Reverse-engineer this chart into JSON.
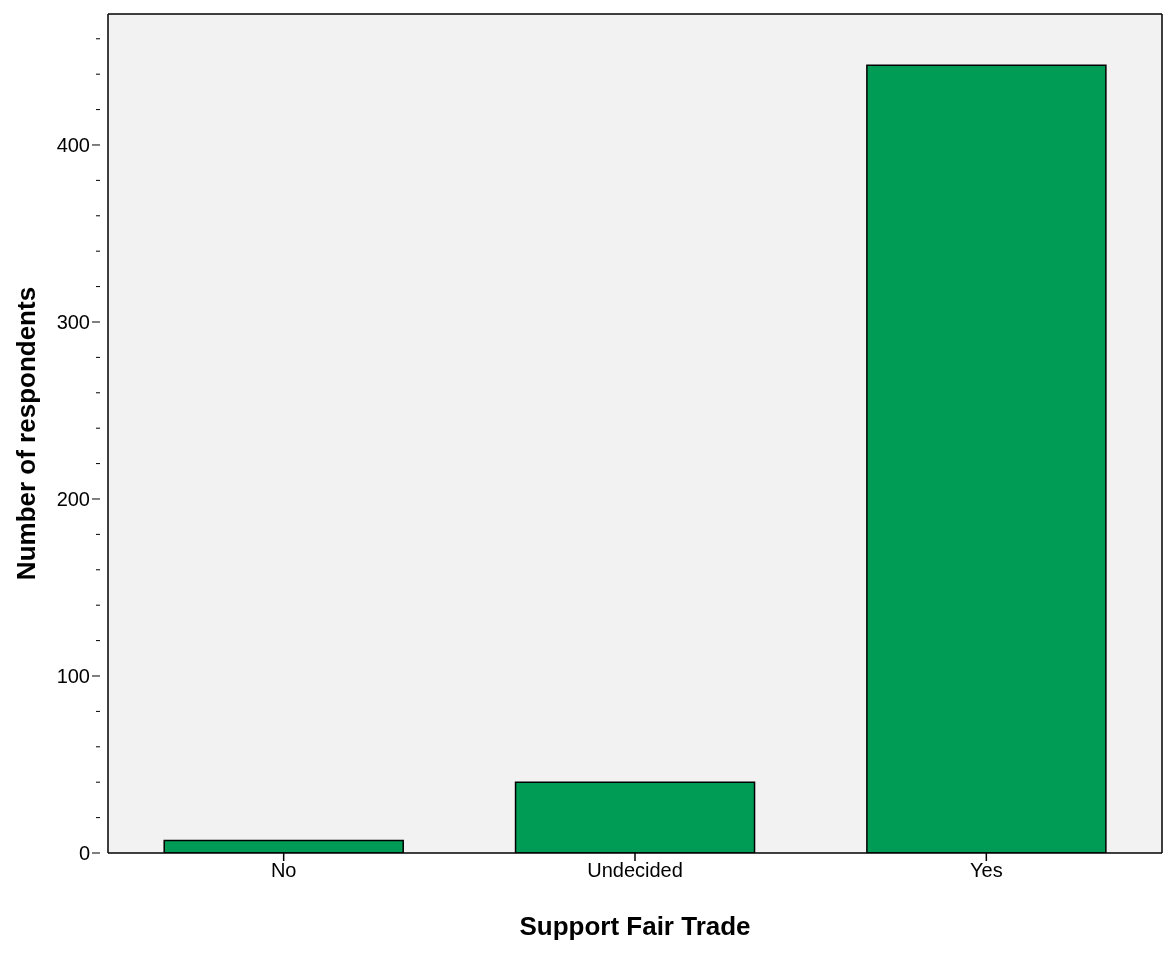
{
  "chart_data": {
    "type": "bar",
    "xlabel": "Support Fair Trade",
    "ylabel": "Number of respondents",
    "categories": [
      "No",
      "Undecided",
      "Yes"
    ],
    "values": [
      7,
      40,
      445
    ],
    "color": "#009c55",
    "ylim": [
      0,
      474
    ],
    "yticks": [
      0,
      {
        "value": 20,
        "label": null
      },
      {
        "value": 40,
        "label": null
      },
      {
        "value": 60,
        "label": null
      },
      {
        "value": 80,
        "label": null
      },
      100,
      {
        "value": 120,
        "label": null
      },
      {
        "value": 140,
        "label": null
      },
      {
        "value": 160,
        "label": null
      },
      {
        "value": 180,
        "label": null
      },
      200,
      {
        "value": 220,
        "label": null
      },
      {
        "value": 240,
        "label": null
      },
      {
        "value": 260,
        "label": null
      },
      {
        "value": 280,
        "label": null
      },
      300,
      {
        "value": 320,
        "label": null
      },
      {
        "value": 340,
        "label": null
      },
      {
        "value": 360,
        "label": null
      },
      {
        "value": 380,
        "label": null
      },
      400,
      {
        "value": 420,
        "label": null
      },
      {
        "value": 440,
        "label": null
      },
      {
        "value": 460,
        "label": null
      }
    ],
    "grid": false
  }
}
